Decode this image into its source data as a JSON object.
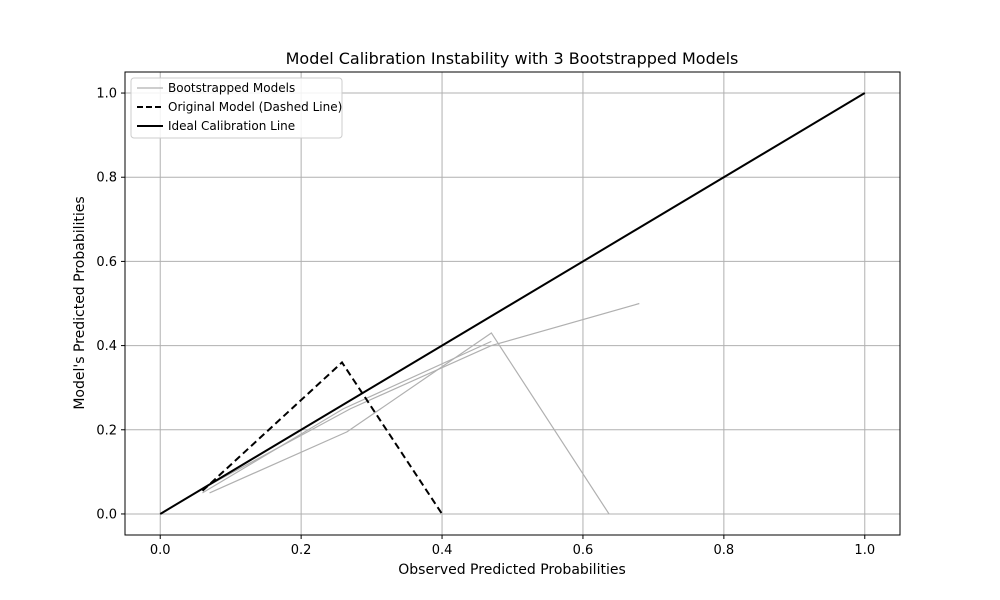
{
  "chart_data": {
    "type": "line",
    "title": "Model Calibration Instability with 3 Bootstrapped Models",
    "xlabel": "Observed Predicted Probabilities",
    "ylabel": "Model's Predicted Probabilities",
    "xlim": [
      -0.05,
      1.05
    ],
    "ylim": [
      -0.05,
      1.05
    ],
    "xticks": [
      0.0,
      0.2,
      0.4,
      0.6,
      0.8,
      1.0
    ],
    "yticks": [
      0.0,
      0.2,
      0.4,
      0.6,
      0.8,
      1.0
    ],
    "xtick_labels": [
      "0.0",
      "0.2",
      "0.4",
      "0.6",
      "0.8",
      "1.0"
    ],
    "ytick_labels": [
      "0.0",
      "0.2",
      "0.4",
      "0.6",
      "0.8",
      "1.0"
    ],
    "grid": true,
    "legend_position": "top-left",
    "legend": [
      {
        "label": "Bootstrapped Models",
        "color": "#b0b0b0",
        "style": "solid"
      },
      {
        "label": "Original Model (Dashed Line)",
        "color": "#000000",
        "style": "dashed"
      },
      {
        "label": "Ideal Calibration Line",
        "color": "#000000",
        "style": "solid"
      }
    ],
    "series": [
      {
        "name": "Bootstrapped Models",
        "color": "#b0b0b0",
        "style": "solid",
        "x": [
          0.06,
          0.26,
          0.47
        ],
        "y": [
          0.05,
          0.25,
          0.41
        ]
      },
      {
        "color": "#b0b0b0",
        "style": "solid",
        "x": [
          0.07,
          0.265,
          0.47,
          0.637
        ],
        "y": [
          0.05,
          0.195,
          0.43,
          0.0
        ]
      },
      {
        "color": "#b0b0b0",
        "style": "solid",
        "x": [
          0.06,
          0.27,
          0.47,
          0.68
        ],
        "y": [
          0.06,
          0.25,
          0.4,
          0.5
        ]
      },
      {
        "name": "Original Model (Dashed Line)",
        "color": "#000000",
        "style": "dashed",
        "x": [
          0.06,
          0.258,
          0.4
        ],
        "y": [
          0.055,
          0.36,
          0.0
        ]
      },
      {
        "name": "Ideal Calibration Line",
        "color": "#000000",
        "style": "solid",
        "x": [
          0.0,
          1.0
        ],
        "y": [
          0.0,
          1.0
        ]
      }
    ]
  }
}
